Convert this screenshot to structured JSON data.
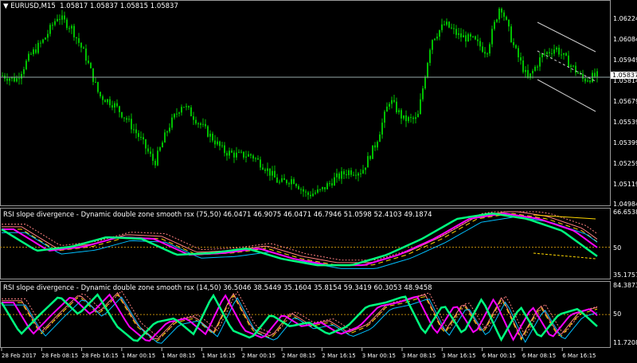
{
  "header": {
    "symbol": "EURUSD,M15",
    "ohlc": "1.05817 1.05837 1.05815 1.05837"
  },
  "current_price": "1.05837",
  "price_axis": [
    "1.06224",
    "1.06084",
    "1.05949",
    "1.05814",
    "1.05679",
    "1.05539",
    "1.05399",
    "1.05259",
    "1.05119",
    "1.04984"
  ],
  "time_axis": [
    "28 Feb 2017",
    "28 Feb 08:15",
    "28 Feb 16:15",
    "1 Mar 00:15",
    "1 Mar 08:15",
    "1 Mar 16:15",
    "2 Mar 00:15",
    "2 Mar 08:15",
    "2 Mar 16:15",
    "3 Mar 00:15",
    "3 Mar 08:15",
    "3 Mar 16:15",
    "6 Mar 00:15",
    "6 Mar 08:15",
    "6 Mar 16:15"
  ],
  "indicator1": {
    "title": "RSI slope divergence -  Dynamic double zone smooth rsx (75,50) 46.0471 46.9075 46.0471 46.7946 51.0598 52.4103 49.1874",
    "axis": [
      "66.6538",
      "50",
      "35.1757"
    ]
  },
  "indicator2": {
    "title": "RSI slope divergence -  Dynamic double zone smooth rsx (14,50) 36.5046 38.5449 35.1604 35.8154 59.3419 60.3053 48.9458",
    "axis": [
      "84.3873",
      "50",
      "11.7208"
    ]
  },
  "colors": {
    "candle": "#00c000",
    "rsx": "#00ff7f",
    "signal": "#ff00ff",
    "zone": "#ffd700",
    "lower": "#00bfff",
    "upper": "#ff8080",
    "level": "#b8860b"
  },
  "chart_data": [
    {
      "type": "candlestick",
      "timeframe": "M15",
      "ylim": [
        1.04984,
        1.06325
      ],
      "close_path": [
        1.05848,
        1.05821,
        1.0598,
        1.06086,
        1.06245,
        1.06166,
        1.0598,
        1.05715,
        1.05662,
        1.05556,
        1.05424,
        1.05265,
        1.05503,
        1.05662,
        1.05556,
        1.0545,
        1.05344,
        1.05318,
        1.05318,
        1.05238,
        1.05132,
        1.05159,
        1.05053,
        1.05079,
        1.05159,
        1.05212,
        1.05212,
        1.05397,
        1.05689,
        1.05556,
        1.05556,
        1.06086,
        1.06192,
        1.06113,
        1.06086,
        1.06007,
        1.06325,
        1.06033,
        1.05821,
        1.0598,
        1.06033,
        1.05927,
        1.05821,
        1.05848
      ]
    },
    {
      "type": "line",
      "panel": "indicator1",
      "ylim": [
        35.1757,
        66.6538
      ],
      "rsx": [
        58.4,
        48.3,
        50.2,
        54.7,
        53.9,
        46.4,
        47.2,
        49.4,
        44.5,
        41.5,
        41.5,
        46.4,
        53.9,
        63.3,
        65.9,
        63.3,
        57.7,
        45.7
      ]
    },
    {
      "type": "line",
      "panel": "indicator2",
      "ylim": [
        11.7208,
        84.3873
      ],
      "rsx": [
        65.7,
        24.2,
        50.1,
        74.0,
        50.1,
        76.1,
        34.6,
        13.8,
        39.8,
        45.0,
        24.2,
        76.1,
        29.4,
        19.0,
        50.1,
        34.6,
        39.8,
        24.2,
        34.6,
        60.5,
        65.7,
        74.0,
        24.2,
        63.6,
        24.2,
        70.9,
        16.9,
        60.5,
        19.0,
        50.1,
        57.4,
        34.6
      ]
    }
  ]
}
